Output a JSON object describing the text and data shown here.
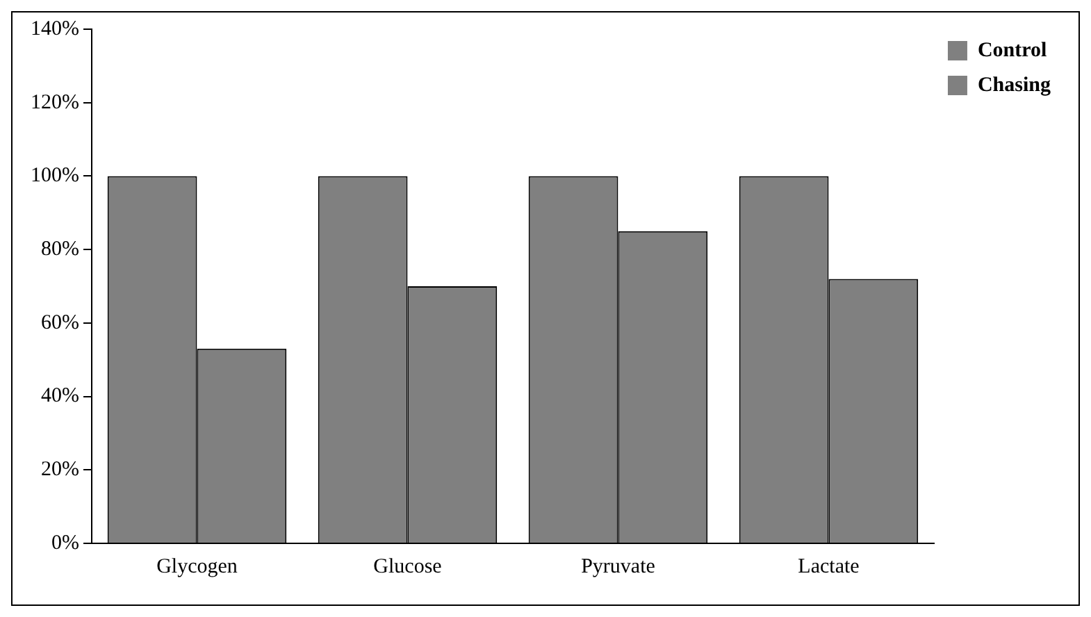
{
  "chart_data": {
    "type": "bar",
    "categories": [
      "Glycogen",
      "Glucose",
      "Pyruvate",
      "Lactate"
    ],
    "series": [
      {
        "name": "Control",
        "color": "#808080",
        "values": [
          100,
          100,
          100,
          100
        ]
      },
      {
        "name": "Chasing",
        "color": "#808080",
        "values": [
          53,
          70,
          85,
          72
        ]
      }
    ],
    "ylim": [
      0,
      140
    ],
    "yticks": [
      {
        "value": 0,
        "label": "0%"
      },
      {
        "value": 20,
        "label": "20%"
      },
      {
        "value": 40,
        "label": "40%"
      },
      {
        "value": 60,
        "label": "60%"
      },
      {
        "value": 80,
        "label": "80%"
      },
      {
        "value": 100,
        "label": "100%"
      },
      {
        "value": 120,
        "label": "120%"
      },
      {
        "value": 140,
        "label": "140%"
      }
    ],
    "grid": false,
    "legend": "right top"
  }
}
